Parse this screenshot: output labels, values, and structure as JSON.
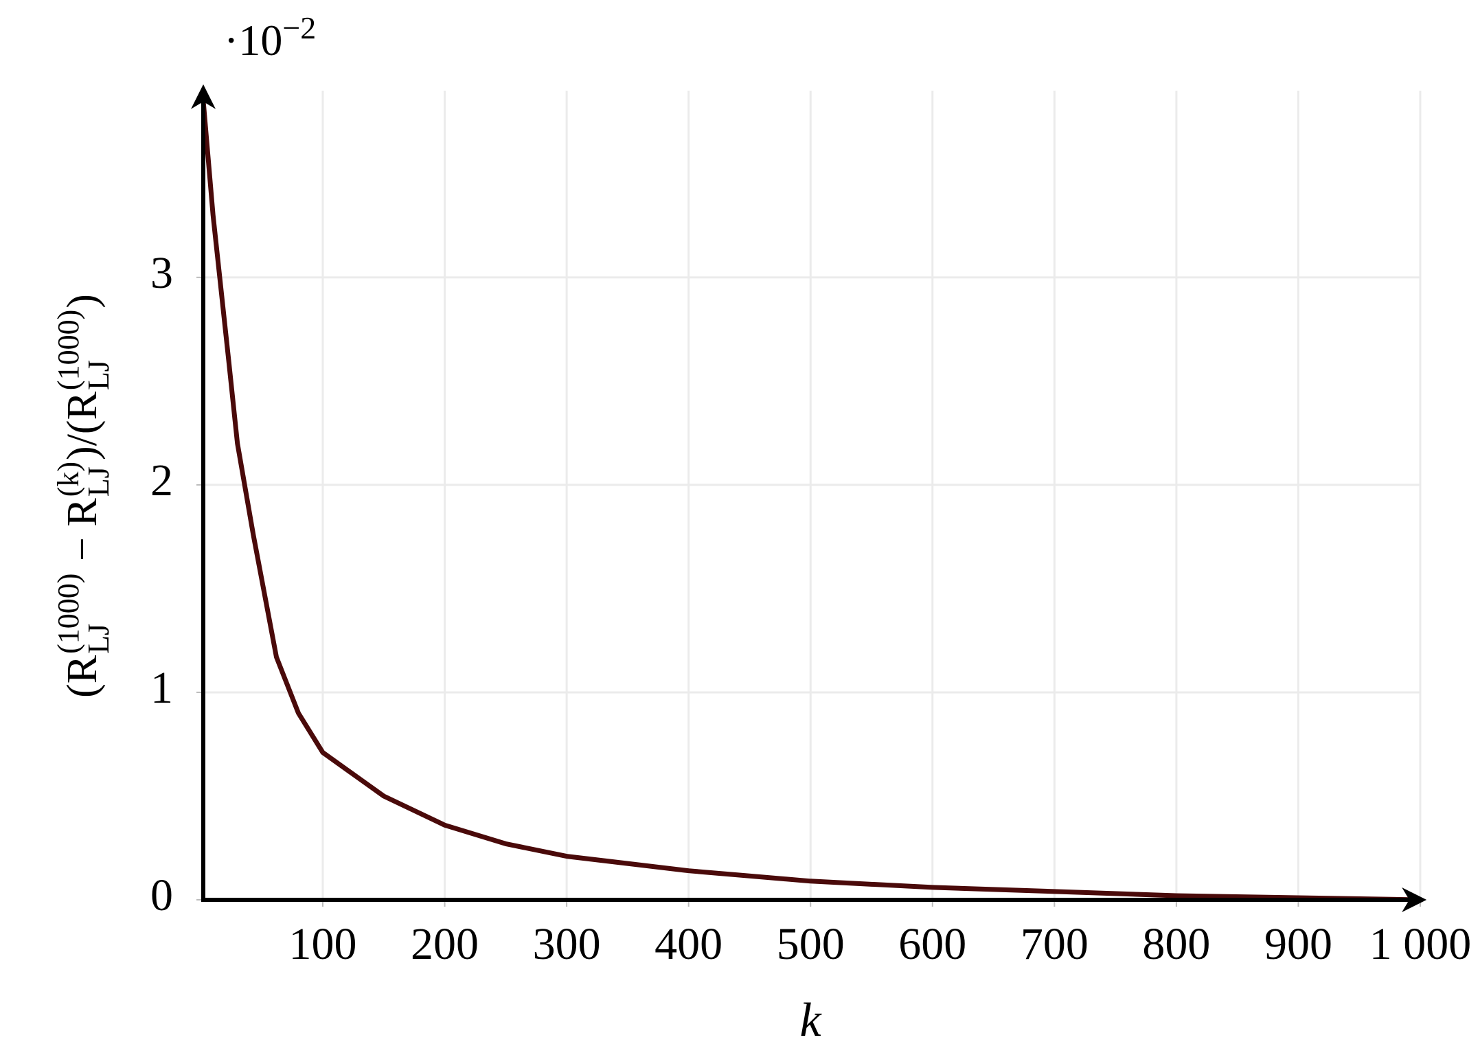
{
  "chart_data": {
    "type": "line",
    "x_label": "k",
    "y_label_parts": [
      "(R",
      "(1000)",
      "LJ",
      " − R",
      "(k)",
      "LJ",
      ")/(R",
      "(1000)",
      "LJ",
      ")"
    ],
    "y_scale_label": {
      "base": "·10",
      "exponent": "−2"
    },
    "xlim": [
      2,
      1000
    ],
    "ylim": [
      0,
      3.9
    ],
    "xticks": [
      100,
      200,
      300,
      400,
      500,
      600,
      700,
      800,
      900,
      {
        "value": 1000,
        "label": "1 000"
      }
    ],
    "yticks": [
      0,
      1,
      2,
      3
    ],
    "grid": true,
    "series": [
      {
        "color": "#4a0a0a",
        "x": [
          2,
          10,
          23,
          30,
          43,
          62,
          80,
          100,
          150,
          200,
          250,
          300,
          400,
          500,
          600,
          700,
          800,
          900,
          1000
        ],
        "values": [
          3.85,
          3.3,
          2.59,
          2.2,
          1.76,
          1.17,
          0.9,
          0.71,
          0.5,
          0.36,
          0.27,
          0.21,
          0.14,
          0.09,
          0.06,
          0.04,
          0.02,
          0.01,
          0
        ]
      }
    ]
  }
}
